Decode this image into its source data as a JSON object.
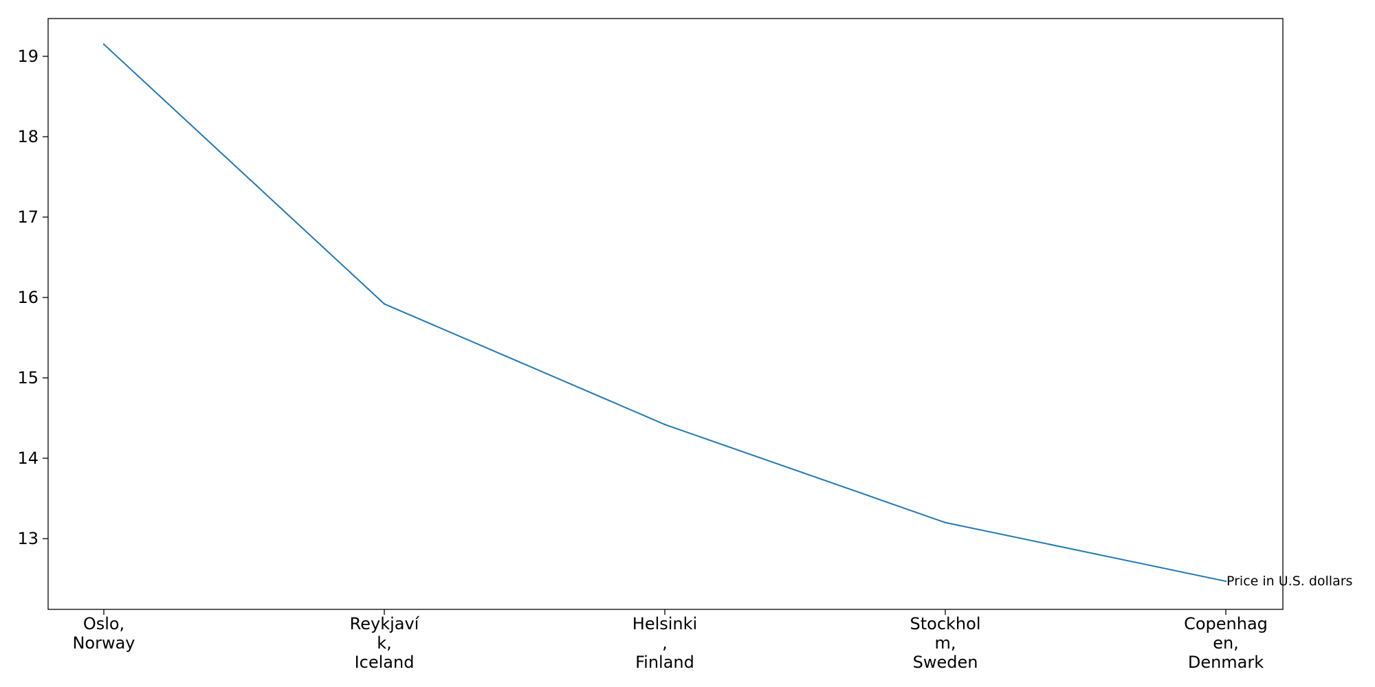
{
  "chart_data": {
    "type": "line",
    "categories": [
      [
        "Oslo,",
        "Norway"
      ],
      [
        "Reykjaví",
        "k,",
        "Iceland"
      ],
      [
        "Helsinki",
        ",",
        "Finland"
      ],
      [
        "Stockhol",
        "m,",
        "Sweden"
      ],
      [
        "Copenhag",
        "en,",
        "Denmark"
      ]
    ],
    "series": [
      {
        "values": [
          19.15,
          15.92,
          14.42,
          13.2,
          12.47
        ],
        "color": "#1f77b4"
      }
    ],
    "annotation": "Price in U.S. dollars",
    "y_ticks": [
      13,
      14,
      15,
      16,
      17,
      18,
      19
    ],
    "y_tick_labels": [
      "13",
      "14",
      "15",
      "16",
      "17",
      "18",
      "19"
    ],
    "ylim": [
      12.12,
      19.47
    ],
    "xlabel": "",
    "ylabel": "",
    "grid": false,
    "legend": false
  }
}
